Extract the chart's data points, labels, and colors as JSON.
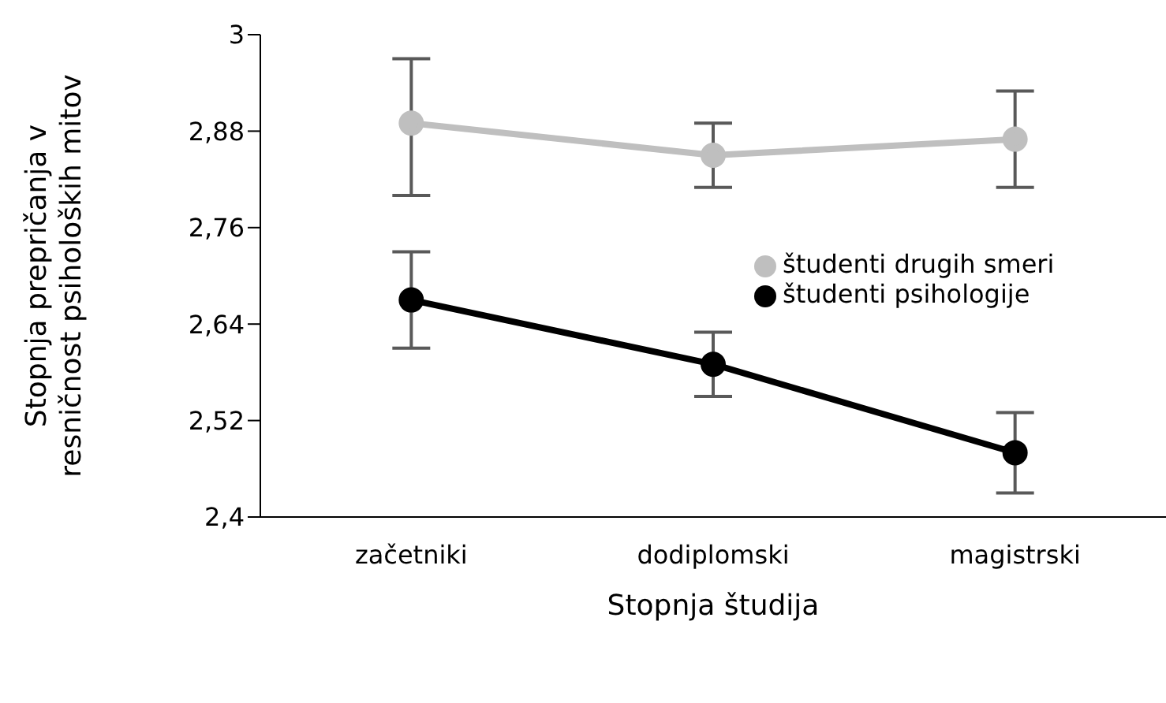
{
  "chart_data": {
    "type": "line",
    "xlabel": "Stopnja študija",
    "ylabel": "Stopnja prepričanja v resničnost psiholoških mitov",
    "categories": [
      "začetniki",
      "dodiplomski",
      "magistrski"
    ],
    "series": [
      {
        "name": "študenti psihologije",
        "color": "#000000",
        "values": [
          2.67,
          2.59,
          2.48
        ],
        "errors": [
          [
            2.61,
            2.73
          ],
          [
            2.55,
            2.63
          ],
          [
            2.43,
            2.53
          ]
        ]
      },
      {
        "name": "študenti drugih smeri",
        "color": "#bfbfbf",
        "values": [
          2.89,
          2.85,
          2.87
        ],
        "errors": [
          [
            2.8,
            2.97
          ],
          [
            2.81,
            2.89
          ],
          [
            2.81,
            2.93
          ]
        ]
      }
    ],
    "ylim": [
      2.4,
      3
    ],
    "yticks": [
      {
        "value": 2.4,
        "label": "2,4"
      },
      {
        "value": 2.52,
        "label": "2,52"
      },
      {
        "value": 2.64,
        "label": "2,64"
      },
      {
        "value": 2.76,
        "label": "2,76"
      },
      {
        "value": 2.88,
        "label": "2,88"
      },
      {
        "value": 3,
        "label": "3"
      }
    ],
    "grid": false,
    "legend": "right",
    "marker": "circle",
    "line_style": "solid"
  }
}
